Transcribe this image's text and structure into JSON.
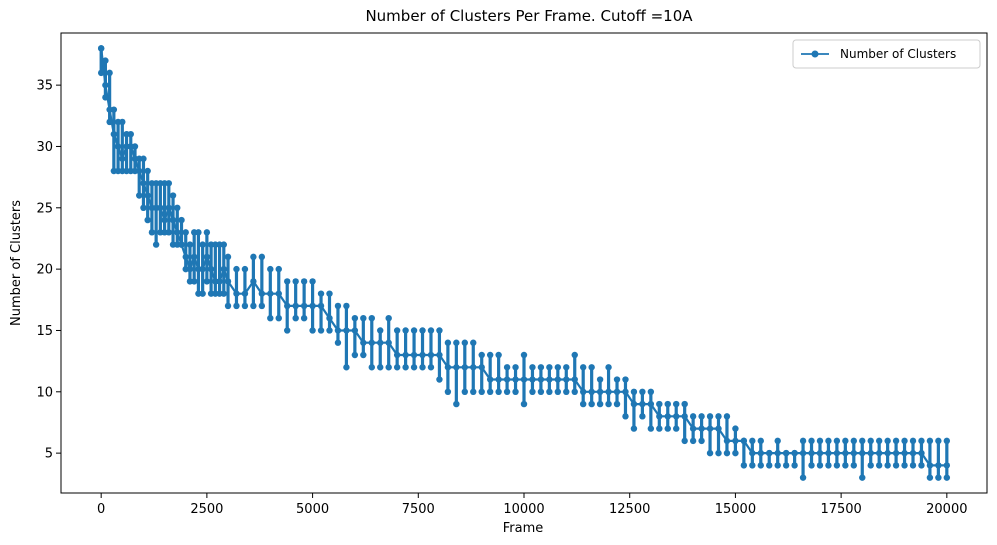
{
  "chart_data": {
    "type": "line",
    "title": "Number of Clusters Per Frame. Cutoff =10A",
    "xlabel": "Frame",
    "ylabel": "Number of Clusters",
    "xlim": [
      -950,
      20950
    ],
    "ylim": [
      1.75,
      39.25
    ],
    "x_ticks": [
      0,
      2500,
      5000,
      7500,
      10000,
      12500,
      15000,
      17500,
      20000
    ],
    "y_ticks": [
      5,
      10,
      15,
      20,
      25,
      30,
      35
    ],
    "grid": false,
    "legend_position": "top-right",
    "marker": "circle",
    "color": "#1f77b4",
    "series": [
      {
        "name": "Number of Clusters",
        "x": [
          0,
          100,
          200,
          300,
          400,
          500,
          600,
          700,
          800,
          900,
          1000,
          1100,
          1200,
          1300,
          1400,
          1500,
          1600,
          1700,
          1800,
          1900,
          2000,
          2100,
          2200,
          2300,
          2400,
          2500,
          2600,
          2700,
          2800,
          2900,
          3000,
          3200,
          3400,
          3600,
          3800,
          4000,
          4200,
          4400,
          4600,
          4800,
          5000,
          5200,
          5400,
          5600,
          5800,
          6000,
          6200,
          6400,
          6600,
          6800,
          7000,
          7200,
          7400,
          7600,
          7800,
          8000,
          8200,
          8400,
          8600,
          8800,
          9000,
          9200,
          9400,
          9600,
          9800,
          10000,
          10200,
          10400,
          10600,
          10800,
          11000,
          11200,
          11400,
          11600,
          11800,
          12000,
          12200,
          12400,
          12600,
          12800,
          13000,
          13200,
          13400,
          13600,
          13800,
          14000,
          14200,
          14400,
          14600,
          14800,
          15000,
          15200,
          15400,
          15600,
          15800,
          16000,
          16200,
          16400,
          16600,
          16800,
          17000,
          17200,
          17400,
          17600,
          17800,
          18000,
          18200,
          18400,
          18600,
          18800,
          19000,
          19200,
          19400,
          19600,
          19800,
          20000
        ],
        "values": [
          38,
          35,
          33,
          31,
          30,
          29,
          30,
          30,
          29,
          28,
          27,
          26,
          25,
          25,
          25,
          24,
          25,
          24,
          23,
          22,
          21,
          20,
          21,
          20,
          20,
          21,
          20,
          19,
          19,
          20,
          19,
          18,
          18,
          19,
          18,
          18,
          18,
          17,
          17,
          17,
          17,
          17,
          16,
          15,
          15,
          15,
          14,
          14,
          14,
          14,
          13,
          13,
          13,
          13,
          13,
          13,
          12,
          12,
          12,
          12,
          12,
          11,
          11,
          11,
          11,
          11,
          11,
          11,
          11,
          11,
          11,
          11,
          10,
          10,
          10,
          10,
          10,
          10,
          9,
          9,
          9,
          8,
          8,
          8,
          8,
          7,
          7,
          7,
          7,
          6,
          6,
          6,
          5,
          5,
          5,
          5,
          5,
          5,
          5,
          5,
          5,
          5,
          5,
          5,
          5,
          5,
          5,
          5,
          5,
          5,
          5,
          5,
          5,
          4,
          4,
          4
        ],
        "upper": [
          38,
          37,
          36,
          33,
          32,
          32,
          31,
          31,
          30,
          29,
          29,
          28,
          27,
          27,
          27,
          27,
          27,
          26,
          25,
          24,
          23,
          22,
          23,
          23,
          22,
          23,
          22,
          22,
          22,
          22,
          21,
          20,
          20,
          21,
          21,
          20,
          20,
          19,
          19,
          19,
          19,
          18,
          18,
          17,
          17,
          16,
          16,
          16,
          15,
          16,
          15,
          15,
          15,
          15,
          15,
          15,
          14,
          14,
          14,
          14,
          13,
          13,
          13,
          12,
          12,
          13,
          12,
          12,
          12,
          12,
          12,
          13,
          12,
          12,
          11,
          12,
          11,
          11,
          10,
          10,
          10,
          9,
          9,
          9,
          9,
          8,
          8,
          8,
          8,
          8,
          7,
          6,
          6,
          6,
          5,
          6,
          5,
          5,
          6,
          6,
          6,
          6,
          6,
          6,
          6,
          6,
          6,
          6,
          6,
          6,
          6,
          6,
          6,
          6,
          6,
          6
        ],
        "lower": [
          36,
          34,
          32,
          28,
          28,
          28,
          28,
          28,
          28,
          26,
          25,
          24,
          23,
          22,
          23,
          23,
          23,
          22,
          22,
          22,
          20,
          19,
          19,
          18,
          18,
          19,
          18,
          18,
          18,
          18,
          17,
          17,
          17,
          17,
          17,
          16,
          16,
          15,
          16,
          16,
          15,
          15,
          15,
          14,
          12,
          13,
          13,
          12,
          12,
          12,
          12,
          12,
          12,
          12,
          12,
          11,
          10,
          9,
          10,
          10,
          10,
          10,
          10,
          10,
          10,
          9,
          10,
          10,
          10,
          10,
          10,
          10,
          9,
          9,
          9,
          9,
          9,
          8,
          7,
          8,
          7,
          7,
          7,
          7,
          6,
          6,
          6,
          5,
          5,
          5,
          5,
          4,
          4,
          4,
          4,
          4,
          4,
          4,
          3,
          4,
          4,
          4,
          4,
          4,
          4,
          3,
          4,
          4,
          4,
          4,
          4,
          4,
          4,
          3,
          3,
          3
        ]
      }
    ]
  }
}
